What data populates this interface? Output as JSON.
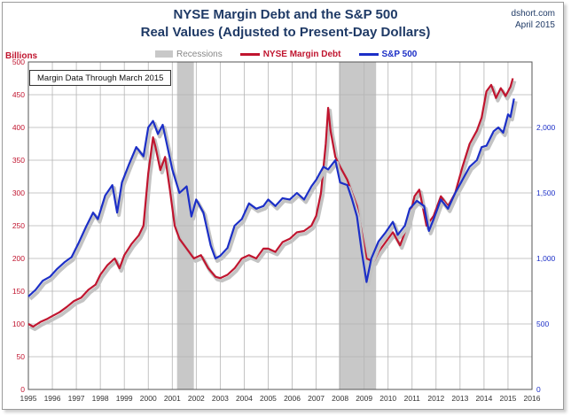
{
  "title_line1": "NYSE Margin Debt and the S&P 500",
  "title_line2": "Real Values (Adjusted to Present-Day Dollars)",
  "source": "dshort.com",
  "source_date": "April 2015",
  "note": "Margin Data Through March 2015",
  "colors": {
    "margin": "#c0152f",
    "sp": "#1c2fc7",
    "recession": "#c8c8c8",
    "shadow": "#c3c3c3"
  },
  "chart_data": {
    "type": "line",
    "left_axis_unit": "Billions",
    "legend": [
      "Recessions",
      "NYSE Margin Debt",
      "S&P 500"
    ],
    "x_ticks": [
      "1995",
      "1996",
      "1997",
      "1998",
      "1999",
      "2000",
      "2001",
      "2002",
      "2003",
      "2004",
      "2005",
      "2006",
      "2007",
      "2008",
      "2009",
      "2010",
      "2011",
      "2012",
      "2013",
      "2014",
      "2015",
      "2016"
    ],
    "x_range": [
      1995,
      2016
    ],
    "y_left_ticks": [
      0,
      50,
      100,
      150,
      200,
      250,
      300,
      350,
      400,
      450,
      500
    ],
    "y_left_range": [
      0,
      500
    ],
    "y_right_ticks": [
      0,
      500,
      1000,
      1500,
      2000
    ],
    "y_right_tick_labels": [
      "0",
      "500",
      "1,000",
      "1,500",
      "2,000"
    ],
    "y_right_range": [
      0,
      2500
    ],
    "recessions": [
      [
        2001.2,
        2001.9
      ],
      [
        2007.95,
        2009.5
      ]
    ],
    "series": [
      {
        "name": "NYSE Margin Debt",
        "axis": "left",
        "points": [
          [
            1995.0,
            100
          ],
          [
            1995.2,
            96
          ],
          [
            1995.5,
            103
          ],
          [
            1995.8,
            108
          ],
          [
            1996.0,
            112
          ],
          [
            1996.3,
            118
          ],
          [
            1996.6,
            126
          ],
          [
            1996.9,
            135
          ],
          [
            1997.2,
            140
          ],
          [
            1997.5,
            152
          ],
          [
            1997.8,
            160
          ],
          [
            1998.0,
            175
          ],
          [
            1998.3,
            190
          ],
          [
            1998.6,
            200
          ],
          [
            1998.8,
            185
          ],
          [
            1999.0,
            205
          ],
          [
            1999.3,
            222
          ],
          [
            1999.6,
            235
          ],
          [
            1999.8,
            250
          ],
          [
            2000.0,
            330
          ],
          [
            2000.2,
            385
          ],
          [
            2000.3,
            370
          ],
          [
            2000.5,
            335
          ],
          [
            2000.7,
            355
          ],
          [
            2000.9,
            305
          ],
          [
            2001.1,
            250
          ],
          [
            2001.3,
            230
          ],
          [
            2001.6,
            215
          ],
          [
            2001.9,
            200
          ],
          [
            2002.2,
            205
          ],
          [
            2002.5,
            185
          ],
          [
            2002.8,
            172
          ],
          [
            2003.0,
            170
          ],
          [
            2003.3,
            175
          ],
          [
            2003.6,
            185
          ],
          [
            2003.9,
            200
          ],
          [
            2004.2,
            205
          ],
          [
            2004.5,
            200
          ],
          [
            2004.8,
            215
          ],
          [
            2005.0,
            215
          ],
          [
            2005.3,
            210
          ],
          [
            2005.6,
            225
          ],
          [
            2005.9,
            230
          ],
          [
            2006.2,
            240
          ],
          [
            2006.5,
            242
          ],
          [
            2006.8,
            250
          ],
          [
            2007.0,
            265
          ],
          [
            2007.2,
            300
          ],
          [
            2007.4,
            375
          ],
          [
            2007.5,
            430
          ],
          [
            2007.6,
            395
          ],
          [
            2007.8,
            355
          ],
          [
            2008.0,
            340
          ],
          [
            2008.3,
            320
          ],
          [
            2008.5,
            300
          ],
          [
            2008.7,
            280
          ],
          [
            2008.9,
            240
          ],
          [
            2009.1,
            200
          ],
          [
            2009.4,
            195
          ],
          [
            2009.6,
            210
          ],
          [
            2009.9,
            225
          ],
          [
            2010.2,
            240
          ],
          [
            2010.5,
            220
          ],
          [
            2010.8,
            250
          ],
          [
            2011.1,
            295
          ],
          [
            2011.3,
            305
          ],
          [
            2011.6,
            250
          ],
          [
            2011.9,
            265
          ],
          [
            2012.2,
            295
          ],
          [
            2012.5,
            280
          ],
          [
            2012.8,
            300
          ],
          [
            2013.1,
            340
          ],
          [
            2013.4,
            375
          ],
          [
            2013.7,
            395
          ],
          [
            2013.9,
            415
          ],
          [
            2014.1,
            455
          ],
          [
            2014.3,
            465
          ],
          [
            2014.5,
            445
          ],
          [
            2014.7,
            460
          ],
          [
            2014.9,
            448
          ],
          [
            2015.1,
            462
          ],
          [
            2015.2,
            475
          ]
        ]
      },
      {
        "name": "S&P 500",
        "axis": "right",
        "points": [
          [
            1995.0,
            710
          ],
          [
            1995.3,
            760
          ],
          [
            1995.6,
            830
          ],
          [
            1995.9,
            860
          ],
          [
            1996.2,
            920
          ],
          [
            1996.5,
            970
          ],
          [
            1996.8,
            1010
          ],
          [
            1997.1,
            1120
          ],
          [
            1997.4,
            1240
          ],
          [
            1997.7,
            1350
          ],
          [
            1997.9,
            1300
          ],
          [
            1998.2,
            1480
          ],
          [
            1998.5,
            1560
          ],
          [
            1998.7,
            1350
          ],
          [
            1998.9,
            1580
          ],
          [
            1999.2,
            1720
          ],
          [
            1999.5,
            1850
          ],
          [
            1999.8,
            1780
          ],
          [
            2000.0,
            2000
          ],
          [
            2000.2,
            2050
          ],
          [
            2000.4,
            1950
          ],
          [
            2000.6,
            2020
          ],
          [
            2000.8,
            1850
          ],
          [
            2001.0,
            1680
          ],
          [
            2001.3,
            1500
          ],
          [
            2001.6,
            1550
          ],
          [
            2001.8,
            1320
          ],
          [
            2002.0,
            1450
          ],
          [
            2002.3,
            1350
          ],
          [
            2002.6,
            1100
          ],
          [
            2002.8,
            1000
          ],
          [
            2003.0,
            1020
          ],
          [
            2003.3,
            1080
          ],
          [
            2003.6,
            1250
          ],
          [
            2003.9,
            1300
          ],
          [
            2004.2,
            1420
          ],
          [
            2004.5,
            1380
          ],
          [
            2004.8,
            1400
          ],
          [
            2005.0,
            1450
          ],
          [
            2005.3,
            1400
          ],
          [
            2005.6,
            1460
          ],
          [
            2005.9,
            1450
          ],
          [
            2006.2,
            1500
          ],
          [
            2006.5,
            1450
          ],
          [
            2006.8,
            1550
          ],
          [
            2007.0,
            1600
          ],
          [
            2007.3,
            1700
          ],
          [
            2007.5,
            1680
          ],
          [
            2007.8,
            1750
          ],
          [
            2008.0,
            1580
          ],
          [
            2008.3,
            1560
          ],
          [
            2008.5,
            1450
          ],
          [
            2008.7,
            1320
          ],
          [
            2008.9,
            1050
          ],
          [
            2009.1,
            820
          ],
          [
            2009.3,
            1000
          ],
          [
            2009.6,
            1130
          ],
          [
            2009.9,
            1200
          ],
          [
            2010.2,
            1280
          ],
          [
            2010.4,
            1180
          ],
          [
            2010.7,
            1250
          ],
          [
            2010.9,
            1380
          ],
          [
            2011.2,
            1440
          ],
          [
            2011.5,
            1400
          ],
          [
            2011.7,
            1210
          ],
          [
            2011.9,
            1300
          ],
          [
            2012.2,
            1450
          ],
          [
            2012.5,
            1380
          ],
          [
            2012.8,
            1500
          ],
          [
            2013.1,
            1600
          ],
          [
            2013.4,
            1700
          ],
          [
            2013.7,
            1750
          ],
          [
            2013.9,
            1850
          ],
          [
            2014.1,
            1860
          ],
          [
            2014.4,
            1970
          ],
          [
            2014.6,
            2000
          ],
          [
            2014.8,
            1960
          ],
          [
            2015.0,
            2100
          ],
          [
            2015.1,
            2080
          ],
          [
            2015.25,
            2220
          ]
        ]
      }
    ]
  }
}
